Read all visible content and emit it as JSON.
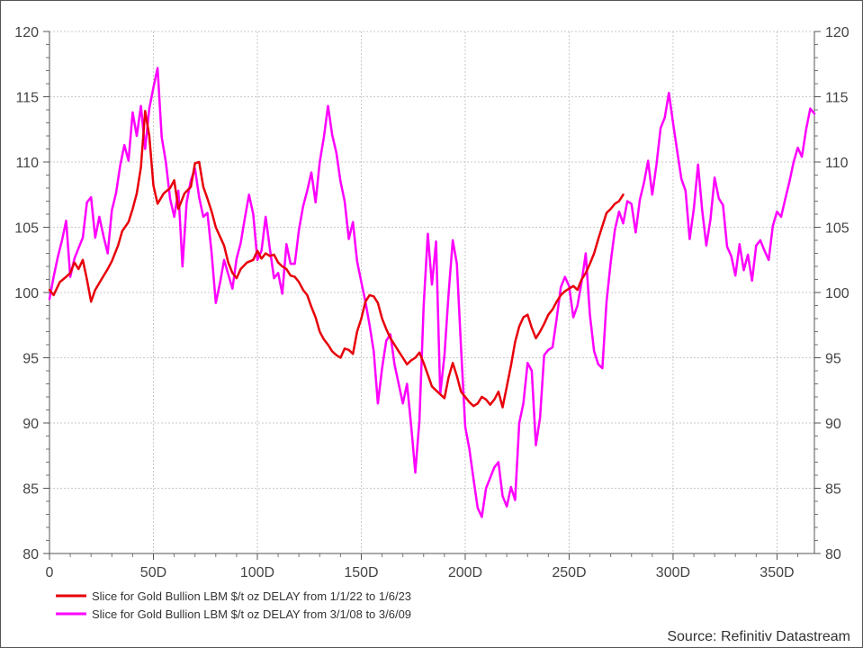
{
  "chart_data": {
    "type": "line",
    "x_tick_labels": [
      "0",
      "50D",
      "100D",
      "150D",
      "200D",
      "250D",
      "300D",
      "350D"
    ],
    "x_tick_values": [
      0,
      50,
      100,
      150,
      200,
      250,
      300,
      350
    ],
    "xlim": [
      0,
      368
    ],
    "ylim": [
      80,
      120
    ],
    "y_ticks": [
      80,
      85,
      90,
      95,
      100,
      105,
      110,
      115,
      120
    ],
    "y_tick_labels": [
      "80",
      "85",
      "90",
      "95",
      "100",
      "105",
      "110",
      "115",
      "120"
    ],
    "grid": true,
    "legend_position": "bottom-left",
    "source": "Source: Refinitiv Datastream",
    "series": [
      {
        "name": "Slice for Gold Bullion LBM $/t oz DELAY from 1/1/22 to 1/6/23",
        "color": "#e8000b",
        "x": [
          0,
          2,
          5,
          8,
          10,
          12,
          14,
          16,
          18,
          20,
          22,
          25,
          28,
          30,
          33,
          35,
          38,
          40,
          42,
          44,
          46,
          48,
          50,
          52,
          55,
          58,
          60,
          62,
          65,
          68,
          70,
          72,
          74,
          76,
          78,
          80,
          82,
          84,
          86,
          88,
          90,
          92,
          95,
          98,
          100,
          102,
          104,
          106,
          108,
          110,
          112,
          114,
          116,
          118,
          120,
          122,
          124,
          126,
          128,
          130,
          132,
          134,
          136,
          138,
          140,
          142,
          144,
          146,
          148,
          150,
          152,
          154,
          156,
          158,
          160,
          162,
          164,
          166,
          168,
          170,
          172,
          174,
          176,
          178,
          180,
          182,
          184,
          186,
          188,
          190,
          192,
          194,
          196,
          198,
          200,
          202,
          204,
          206,
          208,
          210,
          212,
          214,
          216,
          218,
          220,
          222,
          224,
          226,
          228,
          230,
          232,
          234,
          236,
          238,
          240,
          242,
          244,
          246,
          248,
          250,
          252,
          254,
          256,
          258,
          260,
          262,
          264,
          266,
          268,
          270,
          272,
          274,
          276
        ],
        "y": [
          100.2,
          99.8,
          100.8,
          101.2,
          101.5,
          102.3,
          101.8,
          102.5,
          101.0,
          99.3,
          100.2,
          101.0,
          101.8,
          102.4,
          103.6,
          104.7,
          105.4,
          106.4,
          107.6,
          109.6,
          113.9,
          112.0,
          108.2,
          106.8,
          107.6,
          108.0,
          108.6,
          106.4,
          107.6,
          108.1,
          109.9,
          110.0,
          108.1,
          107.2,
          106.2,
          105.0,
          104.3,
          103.6,
          102.3,
          101.5,
          101.1,
          101.8,
          102.3,
          102.5,
          103.2,
          102.6,
          103.0,
          102.8,
          102.9,
          102.3,
          102.0,
          101.8,
          101.3,
          101.2,
          100.8,
          100.2,
          99.8,
          98.9,
          98.1,
          97.0,
          96.4,
          96.0,
          95.5,
          95.2,
          95.0,
          95.7,
          95.6,
          95.3,
          97.0,
          98.0,
          99.3,
          99.8,
          99.7,
          99.2,
          98.0,
          97.2,
          96.5,
          96.0,
          95.5,
          95.0,
          94.5,
          94.8,
          95.0,
          95.4,
          94.6,
          93.7,
          92.8,
          92.5,
          92.2,
          91.9,
          93.5,
          94.6,
          93.6,
          92.4,
          92.0,
          91.6,
          91.3,
          91.5,
          92.0,
          91.8,
          91.4,
          91.8,
          92.4,
          91.2,
          92.8,
          94.4,
          96.2,
          97.4,
          98.1,
          98.3,
          97.3,
          96.5,
          97.0,
          97.6,
          98.3,
          98.7,
          99.3,
          99.8,
          100.1,
          100.3,
          100.5,
          100.2,
          101.0,
          101.5,
          102.2,
          103.0,
          104.1,
          105.1,
          106.1,
          106.4,
          106.8,
          107.0,
          107.5
        ]
      },
      {
        "name": "Slice for Gold Bullion LBM $/t oz DELAY from 3/1/08 to 3/6/09",
        "color": "#ff00ff",
        "x": [
          0,
          2,
          4,
          6,
          8,
          10,
          12,
          14,
          16,
          18,
          20,
          22,
          24,
          26,
          28,
          30,
          32,
          34,
          36,
          38,
          40,
          42,
          44,
          46,
          48,
          50,
          52,
          54,
          56,
          58,
          60,
          62,
          64,
          66,
          68,
          70,
          72,
          74,
          76,
          78,
          80,
          82,
          84,
          86,
          88,
          90,
          92,
          94,
          96,
          98,
          100,
          102,
          104,
          106,
          108,
          110,
          112,
          114,
          116,
          118,
          120,
          122,
          124,
          126,
          128,
          130,
          132,
          134,
          136,
          138,
          140,
          142,
          144,
          146,
          148,
          150,
          152,
          154,
          156,
          158,
          160,
          162,
          164,
          166,
          168,
          170,
          172,
          174,
          176,
          178,
          180,
          182,
          184,
          186,
          188,
          190,
          192,
          194,
          196,
          198,
          200,
          202,
          204,
          206,
          208,
          210,
          212,
          214,
          216,
          218,
          220,
          222,
          224,
          226,
          228,
          230,
          232,
          234,
          236,
          238,
          240,
          242,
          244,
          246,
          248,
          250,
          252,
          254,
          256,
          258,
          260,
          262,
          264,
          266,
          268,
          270,
          272,
          274,
          276,
          278,
          280,
          282,
          284,
          286,
          288,
          290,
          292,
          294,
          296,
          298,
          300,
          302,
          304,
          306,
          308,
          310,
          312,
          314,
          316,
          318,
          320,
          322,
          324,
          326,
          328,
          330,
          332,
          334,
          336,
          338,
          340,
          342,
          344,
          346,
          348,
          350,
          352,
          354,
          356,
          358,
          360,
          362,
          364,
          366,
          368
        ],
        "y": [
          99.5,
          101.2,
          102.7,
          104.0,
          105.5,
          101.2,
          102.6,
          103.4,
          104.2,
          106.9,
          107.3,
          104.2,
          105.8,
          104.3,
          103.0,
          106.3,
          107.6,
          109.7,
          111.3,
          110.1,
          113.8,
          112.0,
          114.3,
          111.0,
          114.1,
          115.7,
          117.2,
          111.9,
          110.0,
          107.2,
          105.8,
          107.8,
          102.0,
          106.9,
          108.6,
          109.5,
          107.3,
          105.8,
          106.1,
          103.0,
          99.2,
          100.7,
          102.5,
          101.4,
          100.3,
          102.6,
          103.8,
          105.7,
          107.5,
          106.0,
          102.5,
          103.2,
          105.8,
          103.4,
          101.1,
          101.5,
          99.9,
          103.7,
          102.2,
          102.2,
          104.8,
          106.6,
          107.8,
          109.2,
          106.9,
          110.0,
          111.9,
          114.3,
          112.1,
          110.7,
          108.5,
          107.0,
          104.1,
          105.4,
          102.4,
          100.8,
          99.3,
          97.5,
          95.5,
          91.5,
          94.2,
          96.3,
          96.8,
          94.5,
          93.0,
          91.5,
          93.0,
          89.8,
          86.2,
          90.2,
          99.0,
          104.5,
          100.6,
          103.9,
          92.2,
          95.2,
          99.9,
          104.0,
          102.2,
          95.8,
          89.7,
          88.0,
          85.7,
          83.5,
          82.8,
          85.0,
          85.8,
          86.6,
          87.0,
          84.4,
          83.6,
          85.1,
          84.1,
          90.0,
          91.5,
          94.6,
          94.0,
          88.3,
          90.4,
          95.2,
          95.6,
          95.8,
          98.0,
          100.4,
          101.2,
          100.5,
          98.1,
          99.0,
          100.8,
          103.0,
          98.3,
          95.5,
          94.5,
          94.2,
          99.3,
          102.3,
          104.8,
          106.2,
          105.3,
          107.0,
          106.8,
          104.6,
          107.1,
          108.4,
          110.1,
          107.5,
          109.8,
          112.6,
          113.4,
          115.3,
          113.0,
          110.8,
          108.7,
          107.8,
          104.1,
          106.4,
          109.8,
          106.3,
          103.6,
          105.6,
          108.8,
          107.2,
          106.7,
          103.5,
          102.8,
          101.3,
          103.7,
          101.7,
          102.9,
          100.9,
          103.6,
          104.0,
          103.2,
          102.5,
          105.1,
          106.2,
          105.8,
          107.2,
          108.5,
          110.0,
          111.1,
          110.4,
          112.5,
          114.1,
          113.7
        ]
      }
    ]
  }
}
